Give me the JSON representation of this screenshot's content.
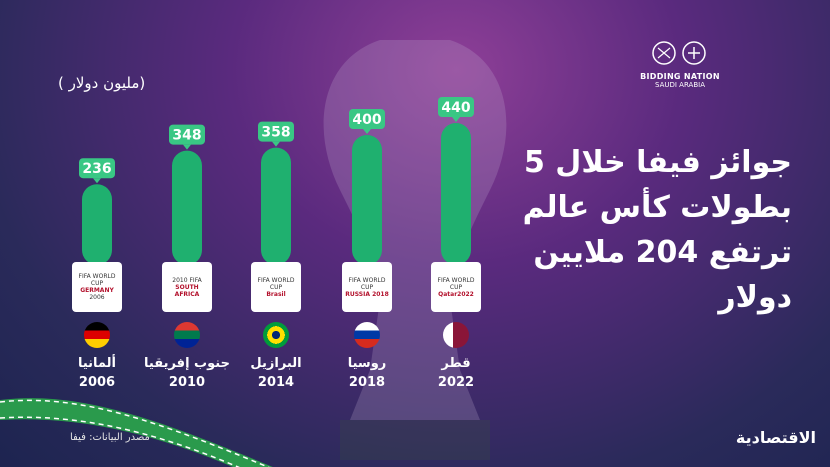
{
  "headline": "جوائز فيفا خلال 5 بطولات كأس عالم ترتفع 204 ملايين دولار",
  "unit": "(مليون دولار )",
  "branding": {
    "name": "BIDDING NATION",
    "sub": "SAUDI ARABIA"
  },
  "source": "مصدر البيانات: فيفا",
  "publisher": "الاقتصادية",
  "colors": {
    "bar": "#1fb06f",
    "bar_light": "#39c784",
    "accent": "#2dbb73",
    "text": "#ffffff"
  },
  "logos": [
    {
      "line1": "FIFA WORLD CUP",
      "line2": "GERMANY",
      "line3": "2006"
    },
    {
      "line1": "2010 FIFA",
      "line2": "SOUTH AFRICA",
      "line3": ""
    },
    {
      "line1": "FIFA WORLD CUP",
      "line2": "Brasil",
      "line3": ""
    },
    {
      "line1": "FIFA WORLD CUP",
      "line2": "RUSSIA 2018",
      "line3": ""
    },
    {
      "line1": "FIFA WORLD CUP",
      "line2": "Qatar2022",
      "line3": ""
    }
  ],
  "chart_data": {
    "type": "bar",
    "categories": [
      "ألمانيا 2006",
      "جنوب إفريقيا 2010",
      "البرازيل 2014",
      "روسيا 2018",
      "قطر 2022"
    ],
    "countries": [
      "ألمانيا",
      "جنوب إفريقيا",
      "البرازيل",
      "روسيا",
      "قطر"
    ],
    "years": [
      "2006",
      "2010",
      "2014",
      "2018",
      "2022"
    ],
    "values": [
      236,
      348,
      358,
      400,
      440
    ],
    "value_labels": [
      "236",
      "348",
      "358",
      "400",
      "440"
    ],
    "ylabel": "(مليون دولار )"
  }
}
